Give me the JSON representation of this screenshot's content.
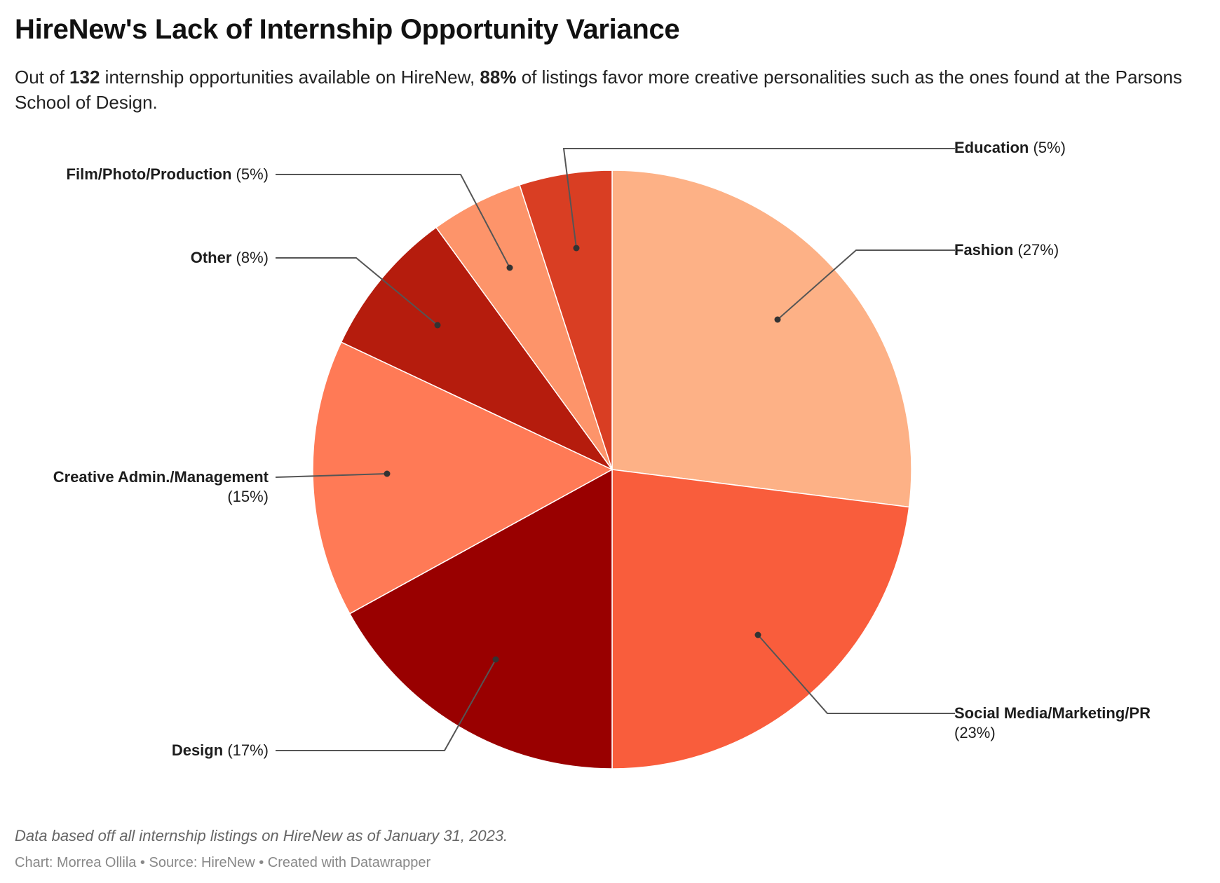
{
  "header": {
    "title": "HireNew's Lack of Internship Opportunity Variance",
    "subtitle_parts": {
      "p1": "Out of ",
      "b1": "132",
      "p2": " internship opportunities available on HireNew, ",
      "b2": "88%",
      "p3": " of listings favor more creative personalities such as the ones found at the Parsons School of Design."
    }
  },
  "labels": {
    "education": {
      "name": "Education",
      "pct": "(5%)"
    },
    "fashion": {
      "name": "Fashion",
      "pct": "(27%)"
    },
    "social": {
      "name": "Social Media/Marketing/PR",
      "pct": "(23%)"
    },
    "design": {
      "name": "Design",
      "pct": "(17%)"
    },
    "creative": {
      "name": "Creative Admin./Management",
      "pct": "(15%)"
    },
    "other": {
      "name": "Other",
      "pct": "(8%)"
    },
    "film": {
      "name": "Film/Photo/Production",
      "pct": "(5%)"
    }
  },
  "footer": {
    "notes": "Data based off all internship listings on HireNew as of January 31, 2023.",
    "byline": "Chart: Morrea Ollila • Source: HireNew • Created with Datawrapper"
  },
  "chart_data": {
    "type": "pie",
    "title": "HireNew's Lack of Internship Opportunity Variance",
    "subtitle": "Out of 132 internship opportunities available on HireNew, 88% of listings favor more creative personalities such as the ones found at the Parsons School of Design.",
    "categories": [
      "Fashion",
      "Social Media/Marketing/PR",
      "Design",
      "Creative Admin./Management",
      "Other",
      "Film/Photo/Production",
      "Education"
    ],
    "values": [
      27,
      23,
      17,
      15,
      8,
      5,
      5
    ],
    "unit": "%",
    "colors": [
      "#fdb186",
      "#f95d3c",
      "#990000",
      "#ff7a56",
      "#b51c0d",
      "#fd946a",
      "#d93e23"
    ],
    "start_angle": "12 o'clock, clockwise",
    "label_format": "Name (pct%)",
    "notes": "Data based off all internship listings on HireNew as of January 31, 2023.",
    "source": "HireNew",
    "credit": "Chart: Morrea Ollila"
  }
}
